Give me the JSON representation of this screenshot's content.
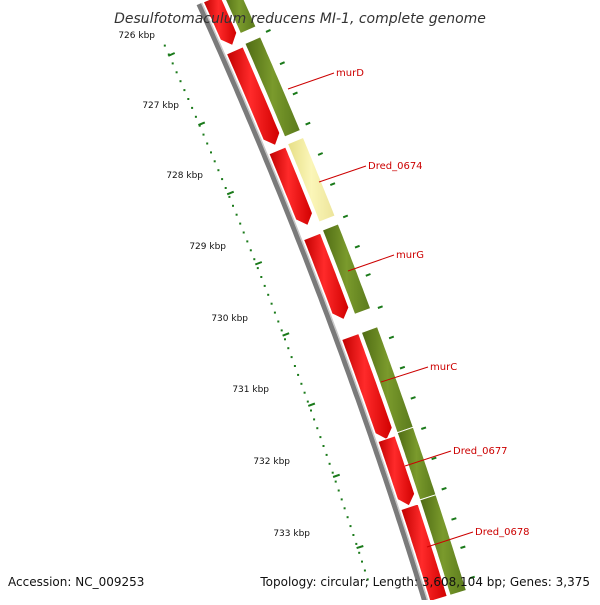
{
  "title": "Desulfotomaculum reducens MI-1, complete genome",
  "footer": {
    "accession": "Accession: NC_009253",
    "stats": "Topology: circular; Length: 3,608,104 bp; Genes: 3,375"
  },
  "colors": {
    "label": "#cc0000",
    "label_line": "#cc0000",
    "ruler": "#1a7a1a",
    "backbone": "#808080",
    "red_feature": "#ff0000",
    "green_feature": "#6b8e23",
    "pale_feature": "#f5f0a0"
  },
  "ruler": {
    "ticks": [
      {
        "label": "726 kbp"
      },
      {
        "label": "727 kbp"
      },
      {
        "label": "728 kbp"
      },
      {
        "label": "729 kbp"
      },
      {
        "label": "730 kbp"
      },
      {
        "label": "731 kbp"
      },
      {
        "label": "732 kbp"
      },
      {
        "label": "733 kbp"
      }
    ]
  },
  "genes": [
    {
      "label": "murD"
    },
    {
      "label": "Dred_0674"
    },
    {
      "label": "murG"
    },
    {
      "label": "murC"
    },
    {
      "label": "Dred_0677"
    },
    {
      "label": "Dred_0678"
    }
  ]
}
